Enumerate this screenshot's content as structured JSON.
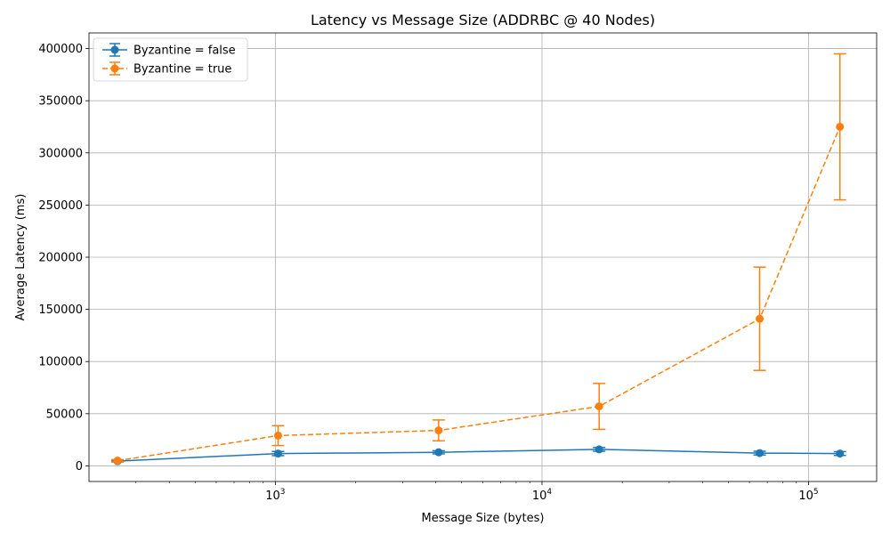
{
  "chart_data": {
    "type": "line",
    "title": "Latency vs Message Size (ADDRBC @ 40 Nodes)",
    "xlabel": "Message Size (bytes)",
    "ylabel": "Average Latency (ms)",
    "x_scale": "log",
    "xlim": [
      200,
      180000
    ],
    "ylim": [
      -15000,
      415000
    ],
    "grid": true,
    "legend_position": "top-left",
    "x": [
      256,
      1024,
      4096,
      16384,
      65536,
      131072
    ],
    "x_ticks": [
      {
        "value": 1000,
        "base": "10",
        "exp": "3"
      },
      {
        "value": 10000,
        "base": "10",
        "exp": "4"
      },
      {
        "value": 100000,
        "base": "10",
        "exp": "5"
      }
    ],
    "y_ticks": [
      0,
      50000,
      100000,
      150000,
      200000,
      250000,
      300000,
      350000,
      400000
    ],
    "y_tick_labels": [
      "0",
      "50000",
      "100000",
      "150000",
      "200000",
      "250000",
      "300000",
      "350000",
      "400000"
    ],
    "series": [
      {
        "name": "Byzantine = false",
        "color": "#1f77b4",
        "linestyle": "solid",
        "values": [
          4500,
          11800,
          13000,
          15800,
          12200,
          11800
        ],
        "errors": [
          800,
          2000,
          1500,
          1800,
          1800,
          1800
        ]
      },
      {
        "name": "Byzantine = true",
        "color": "#ff7f0e",
        "linestyle": "dashed",
        "values": [
          5000,
          29000,
          34000,
          57000,
          141000,
          325000
        ],
        "errors": [
          1000,
          9500,
          10000,
          22000,
          49500,
          70000
        ]
      }
    ]
  }
}
